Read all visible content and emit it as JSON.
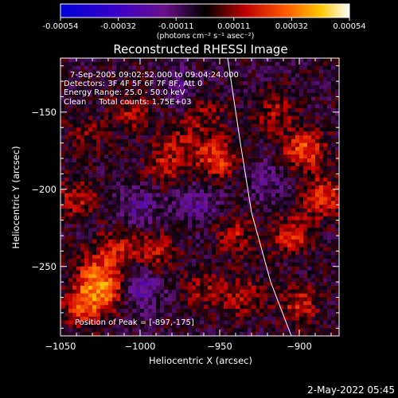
{
  "colorbar": {
    "ticks": [
      "-0.00054",
      "-0.00032",
      "-0.00011",
      "0.00011",
      "0.00032",
      "0.00054"
    ],
    "units": "(photons cm⁻² s⁻¹ asec⁻²)",
    "range": [
      -0.00054,
      0.00054
    ]
  },
  "footer": {
    "timestamp": "2-May-2022 05:45"
  },
  "chart_data": {
    "type": "heatmap",
    "title": "Reconstructed RHESSI Image",
    "xlabel": "Heliocentric X (arcsec)",
    "ylabel": "Heliocentric Y (arcsec)",
    "xlim": [
      -1050,
      -875
    ],
    "ylim": [
      -295,
      -115
    ],
    "x_ticks": [
      -1050,
      -1000,
      -950,
      -900
    ],
    "y_ticks": [
      -150,
      -200,
      -250
    ],
    "annotations": [
      "7-Sep-2005 09:02:52.000 to 09:04:24.000",
      "Detectors: 3F 4F 5F 6F 7F 8F, Att 0",
      "Energy Range: 25.0 - 50.0 keV",
      "Clean     Total counts: 1.75E+03"
    ],
    "peak_label": "Position of Peak = [-897,-175]",
    "limb_curve": [
      [
        -945,
        -115
      ],
      [
        -937,
        -170
      ],
      [
        -930,
        -215
      ],
      [
        -918,
        -260
      ],
      [
        -905,
        -295
      ]
    ],
    "colormap": "blue-purple-black-red-orange-yellow-white",
    "sources": [
      {
        "x": -1035,
        "y": -275,
        "intensity": 0.54
      },
      {
        "x": -1020,
        "y": -265,
        "intensity": 0.45
      },
      {
        "x": -1015,
        "y": -240,
        "intensity": 0.35
      },
      {
        "x": -1030,
        "y": -255,
        "intensity": 0.4
      },
      {
        "x": -1040,
        "y": -205,
        "intensity": 0.32
      },
      {
        "x": -990,
        "y": -240,
        "intensity": 0.3
      },
      {
        "x": -985,
        "y": -185,
        "intensity": 0.28
      },
      {
        "x": -975,
        "y": -170,
        "intensity": 0.26
      },
      {
        "x": -960,
        "y": -150,
        "intensity": 0.25
      },
      {
        "x": -952,
        "y": -180,
        "intensity": 0.5
      },
      {
        "x": -940,
        "y": -230,
        "intensity": 0.3
      },
      {
        "x": -915,
        "y": -150,
        "intensity": 0.28
      },
      {
        "x": -897,
        "y": -175,
        "intensity": 0.54
      },
      {
        "x": -885,
        "y": -205,
        "intensity": 0.45
      },
      {
        "x": -905,
        "y": -230,
        "intensity": 0.4
      },
      {
        "x": -900,
        "y": -275,
        "intensity": 0.35
      },
      {
        "x": -935,
        "y": -270,
        "intensity": 0.3
      },
      {
        "x": -960,
        "y": -265,
        "intensity": 0.25
      },
      {
        "x": -1005,
        "y": -150,
        "intensity": 0.28
      },
      {
        "x": -1035,
        "y": -165,
        "intensity": 0.22
      },
      {
        "x": -965,
        "y": -210,
        "intensity": -0.3
      },
      {
        "x": -1000,
        "y": -210,
        "intensity": -0.25
      },
      {
        "x": -1000,
        "y": -265,
        "intensity": -0.35
      },
      {
        "x": -975,
        "y": -135,
        "intensity": -0.2
      },
      {
        "x": -920,
        "y": -195,
        "intensity": -0.22
      }
    ]
  }
}
